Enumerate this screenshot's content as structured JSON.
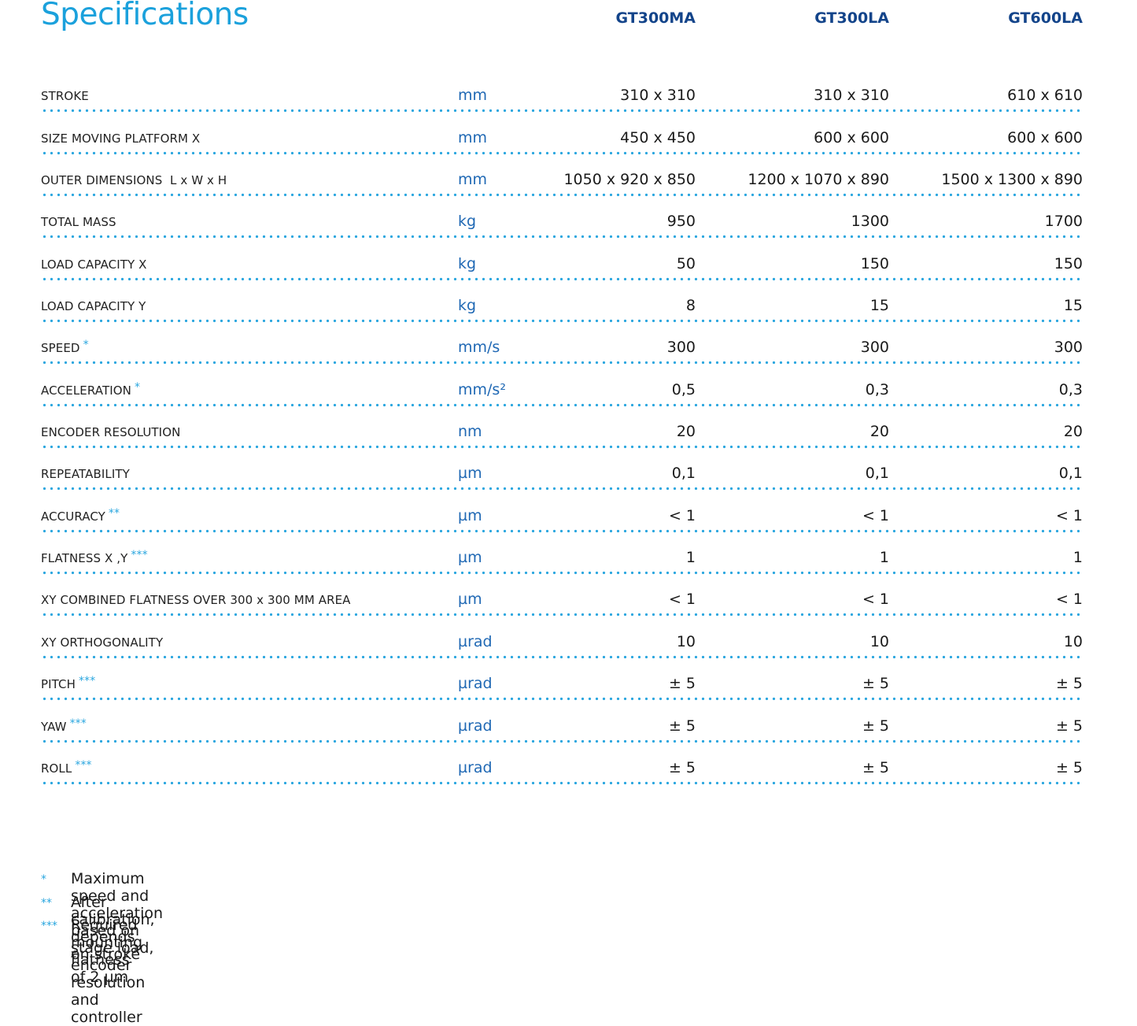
{
  "title": "Specifications",
  "columns": [
    "GT300MA",
    "GT300LA",
    "GT600LA"
  ],
  "rows": [
    {
      "label": "STROKE",
      "star": "",
      "unit": "mm",
      "values": [
        "310 x 310",
        "310 x 310",
        "610 x 610"
      ]
    },
    {
      "label": "SIZE MOVING PLATFORM X",
      "star": "",
      "unit": "mm",
      "values": [
        "450 x 450",
        "600 x 600",
        "600 x 600"
      ]
    },
    {
      "label": "OUTER DIMENSIONS  L x W x H",
      "star": "",
      "unit": "mm",
      "values": [
        "1050 x 920 x 850",
        "1200 x 1070 x 890",
        "1500 x 1300 x 890"
      ]
    },
    {
      "label": "TOTAL MASS",
      "star": "",
      "unit": "kg",
      "values": [
        "950",
        "1300",
        "1700"
      ]
    },
    {
      "label": "LOAD CAPACITY X",
      "star": "",
      "unit": "kg",
      "values": [
        "50",
        "150",
        "150"
      ]
    },
    {
      "label": "LOAD CAPACITY Y",
      "star": "",
      "unit": "kg",
      "values": [
        "8",
        "15",
        "15"
      ]
    },
    {
      "label": "SPEED",
      "star": "*",
      "unit": "mm/s",
      "values": [
        "300",
        "300",
        "300"
      ]
    },
    {
      "label": "ACCELERATION",
      "star": "*",
      "unit": "mm/s²",
      "values": [
        "0,5",
        "0,3",
        "0,3"
      ]
    },
    {
      "label": "ENCODER RESOLUTION",
      "star": "",
      "unit": "nm",
      "values": [
        "20",
        "20",
        "20"
      ]
    },
    {
      "label": "REPEATABILITY",
      "star": "",
      "unit": "µm",
      "values": [
        "0,1",
        "0,1",
        "0,1"
      ]
    },
    {
      "label": "ACCURACY",
      "star": "**",
      "unit": "µm",
      "values": [
        "< 1",
        "< 1",
        "< 1"
      ]
    },
    {
      "label": "FLATNESS X ,Y",
      "star": "***",
      "unit": "µm",
      "values": [
        "1",
        "1",
        "1"
      ]
    },
    {
      "label": "XY COMBINED FLATNESS OVER 300 x 300 MM AREA",
      "star": "",
      "unit": "µm",
      "values": [
        "< 1",
        "< 1",
        "< 1"
      ]
    },
    {
      "label": "XY ORTHOGONALITY",
      "star": "",
      "unit": "µrad",
      "values": [
        "10",
        "10",
        "10"
      ]
    },
    {
      "label": "PITCH",
      "star": "***",
      "unit": "µrad",
      "values": [
        "± 5",
        "± 5",
        "± 5"
      ]
    },
    {
      "label": "YAW",
      "star": "***",
      "unit": "µrad",
      "values": [
        "± 5",
        "± 5",
        "± 5"
      ]
    },
    {
      "label": "ROLL",
      "star": "***",
      "unit": "µrad",
      "values": [
        "± 5",
        "± 5",
        "± 5"
      ]
    }
  ],
  "footnotes": [
    {
      "mark": "*",
      "text": "Maximum speed and acceleration based on stage load, encoder resolution and controller"
    },
    {
      "mark": "**",
      "text": "After calibration, depends on stroke"
    },
    {
      "mark": "***",
      "text": "Required mounting flatness of 2 µm"
    }
  ],
  "colors": {
    "title": "#1ba1dc",
    "column_header": "#13448a",
    "unit": "#1f68b4",
    "dots": "#2aa6df"
  }
}
